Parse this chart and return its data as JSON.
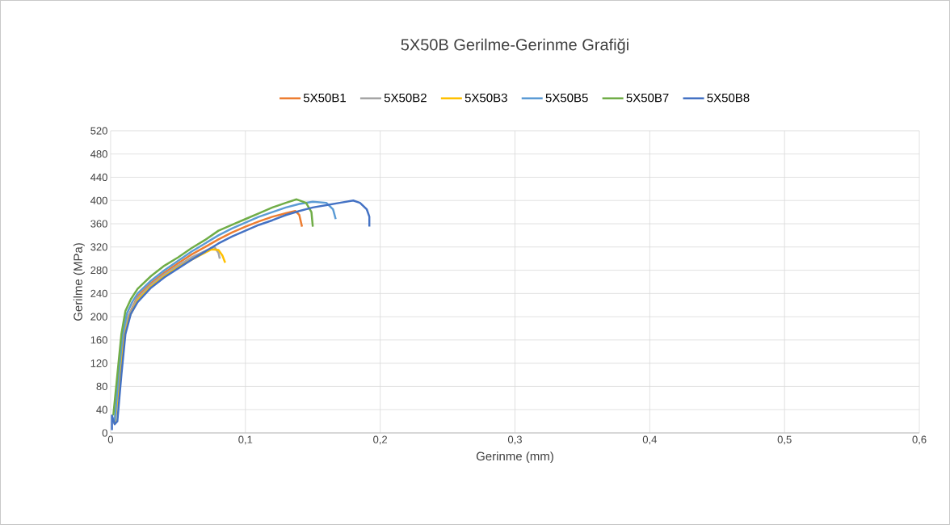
{
  "chart_data": {
    "type": "line",
    "title": "5X50B Gerilme-Gerinme Grafiği",
    "xlabel": "Gerinme (mm)",
    "ylabel": "Gerilme (MPa)",
    "xlim": [
      0,
      0.6
    ],
    "xticks": [
      0,
      {
        "value": 0.1,
        "label": "0,1"
      },
      {
        "value": 0.2,
        "label": "0,2"
      },
      {
        "value": 0.3,
        "label": "0,3"
      },
      {
        "value": 0.4,
        "label": "0,4"
      },
      {
        "value": 0.5,
        "label": "0,5"
      },
      {
        "value": 0.6,
        "label": "0,6"
      }
    ],
    "ylim": [
      0,
      520
    ],
    "yticks": [
      0,
      40,
      80,
      120,
      160,
      200,
      240,
      280,
      320,
      360,
      400,
      440,
      480,
      520
    ],
    "grid": true,
    "legend": "top",
    "marker": "none",
    "line_style": "solid",
    "series": [
      {
        "name": "5X50B1",
        "color": "#ed7d31",
        "x": [
          0.01,
          0.013,
          0.02,
          0.03,
          0.04,
          0.05,
          0.06,
          0.07,
          0.08,
          0.09,
          0.1,
          0.11,
          0.12,
          0.13,
          0.137,
          0.14,
          0.142
        ],
        "values": [
          170,
          200,
          235,
          258,
          276,
          292,
          307,
          320,
          333,
          345,
          355,
          364,
          372,
          378,
          382,
          375,
          355
        ]
      },
      {
        "name": "5X50B2",
        "color": "#a5a5a5",
        "x": [
          0.003,
          0.007,
          0.01,
          0.013,
          0.02,
          0.03,
          0.04,
          0.05,
          0.06,
          0.07,
          0.077,
          0.08,
          0.081
        ],
        "values": [
          15,
          100,
          170,
          200,
          232,
          255,
          273,
          288,
          302,
          313,
          320,
          310,
          300
        ]
      },
      {
        "name": "5X50B3",
        "color": "#ffc000",
        "x": [
          0.003,
          0.007,
          0.01,
          0.014,
          0.02,
          0.03,
          0.04,
          0.05,
          0.06,
          0.07,
          0.075,
          0.08,
          0.083,
          0.085
        ],
        "values": [
          15,
          100,
          165,
          200,
          228,
          252,
          270,
          285,
          298,
          310,
          316,
          315,
          305,
          293
        ]
      },
      {
        "name": "5X50B5",
        "color": "#5b9bd5",
        "x": [
          0.003,
          0.006,
          0.009,
          0.012,
          0.016,
          0.02,
          0.03,
          0.04,
          0.05,
          0.06,
          0.07,
          0.08,
          0.09,
          0.1,
          0.11,
          0.12,
          0.13,
          0.14,
          0.15,
          0.16,
          0.165,
          0.167
        ],
        "values": [
          20,
          100,
          170,
          205,
          225,
          240,
          262,
          280,
          296,
          312,
          326,
          340,
          352,
          362,
          372,
          380,
          388,
          394,
          398,
          396,
          385,
          368
        ]
      },
      {
        "name": "5X50B7",
        "color": "#70ad47",
        "x": [
          0.002,
          0.005,
          0.008,
          0.011,
          0.015,
          0.02,
          0.03,
          0.04,
          0.05,
          0.06,
          0.07,
          0.08,
          0.09,
          0.1,
          0.11,
          0.12,
          0.13,
          0.138,
          0.145,
          0.149,
          0.15
        ],
        "values": [
          30,
          100,
          170,
          210,
          230,
          248,
          270,
          288,
          302,
          318,
          332,
          348,
          358,
          368,
          378,
          388,
          396,
          402,
          396,
          380,
          355
        ]
      },
      {
        "name": "5X50B8",
        "color": "#4472c4",
        "x": [
          0.001,
          0.001,
          0.003,
          0.005,
          0.008,
          0.011,
          0.015,
          0.02,
          0.03,
          0.04,
          0.05,
          0.06,
          0.07,
          0.08,
          0.09,
          0.1,
          0.11,
          0.12,
          0.13,
          0.14,
          0.15,
          0.16,
          0.17,
          0.18,
          0.185,
          0.19,
          0.192,
          0.192
        ],
        "values": [
          5,
          30,
          15,
          20,
          100,
          170,
          205,
          225,
          250,
          268,
          283,
          298,
          312,
          326,
          338,
          348,
          358,
          366,
          375,
          382,
          388,
          392,
          396,
          400,
          396,
          385,
          372,
          355
        ]
      }
    ]
  }
}
